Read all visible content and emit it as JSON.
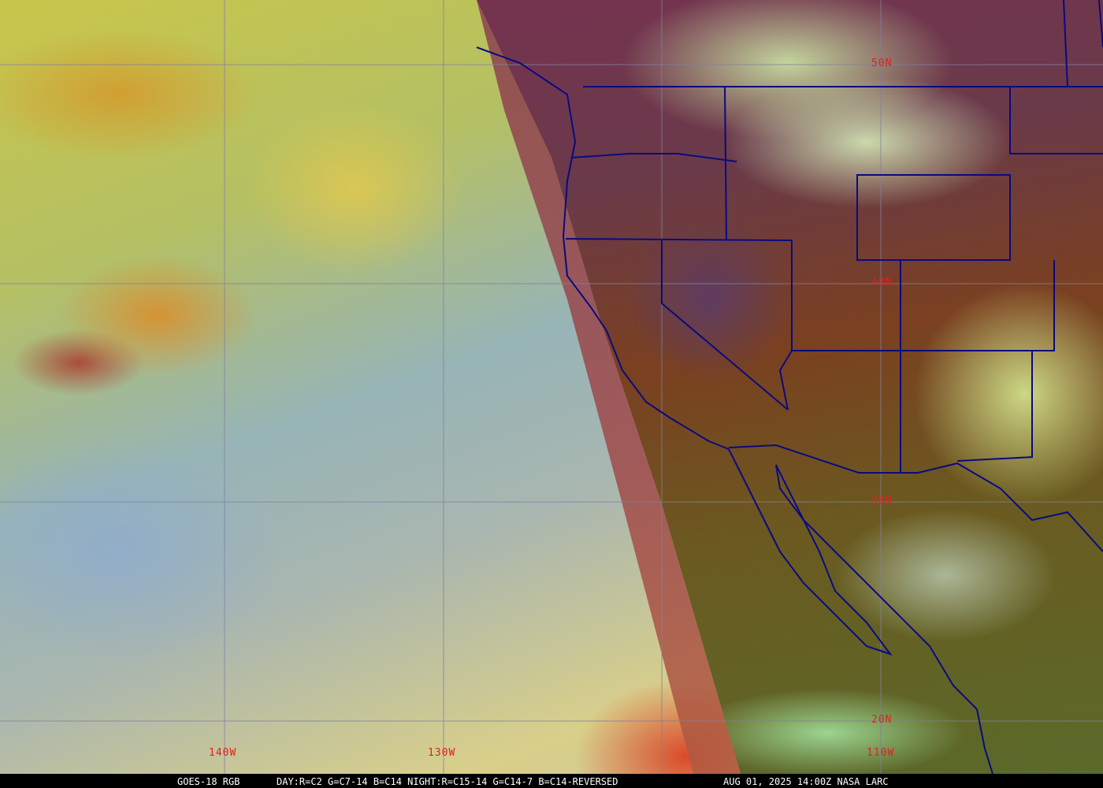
{
  "footer": {
    "satellite": "GOES-18 RGB",
    "recipe": "DAY:R=C2 G=C7-14 B=C14 NIGHT:R=C15-14 G=C14-7 B=C14-REVERSED",
    "timestamp": "AUG 01, 2025 14:00Z NASA LARC"
  },
  "grid_labels": {
    "lat": [
      "50N",
      "40N",
      "30N",
      "20N"
    ],
    "lon": [
      "140W",
      "130W",
      "110W"
    ]
  },
  "colors": {
    "grid": "#8080a0",
    "borders": "#0a0a80",
    "labels": "#e02020"
  }
}
